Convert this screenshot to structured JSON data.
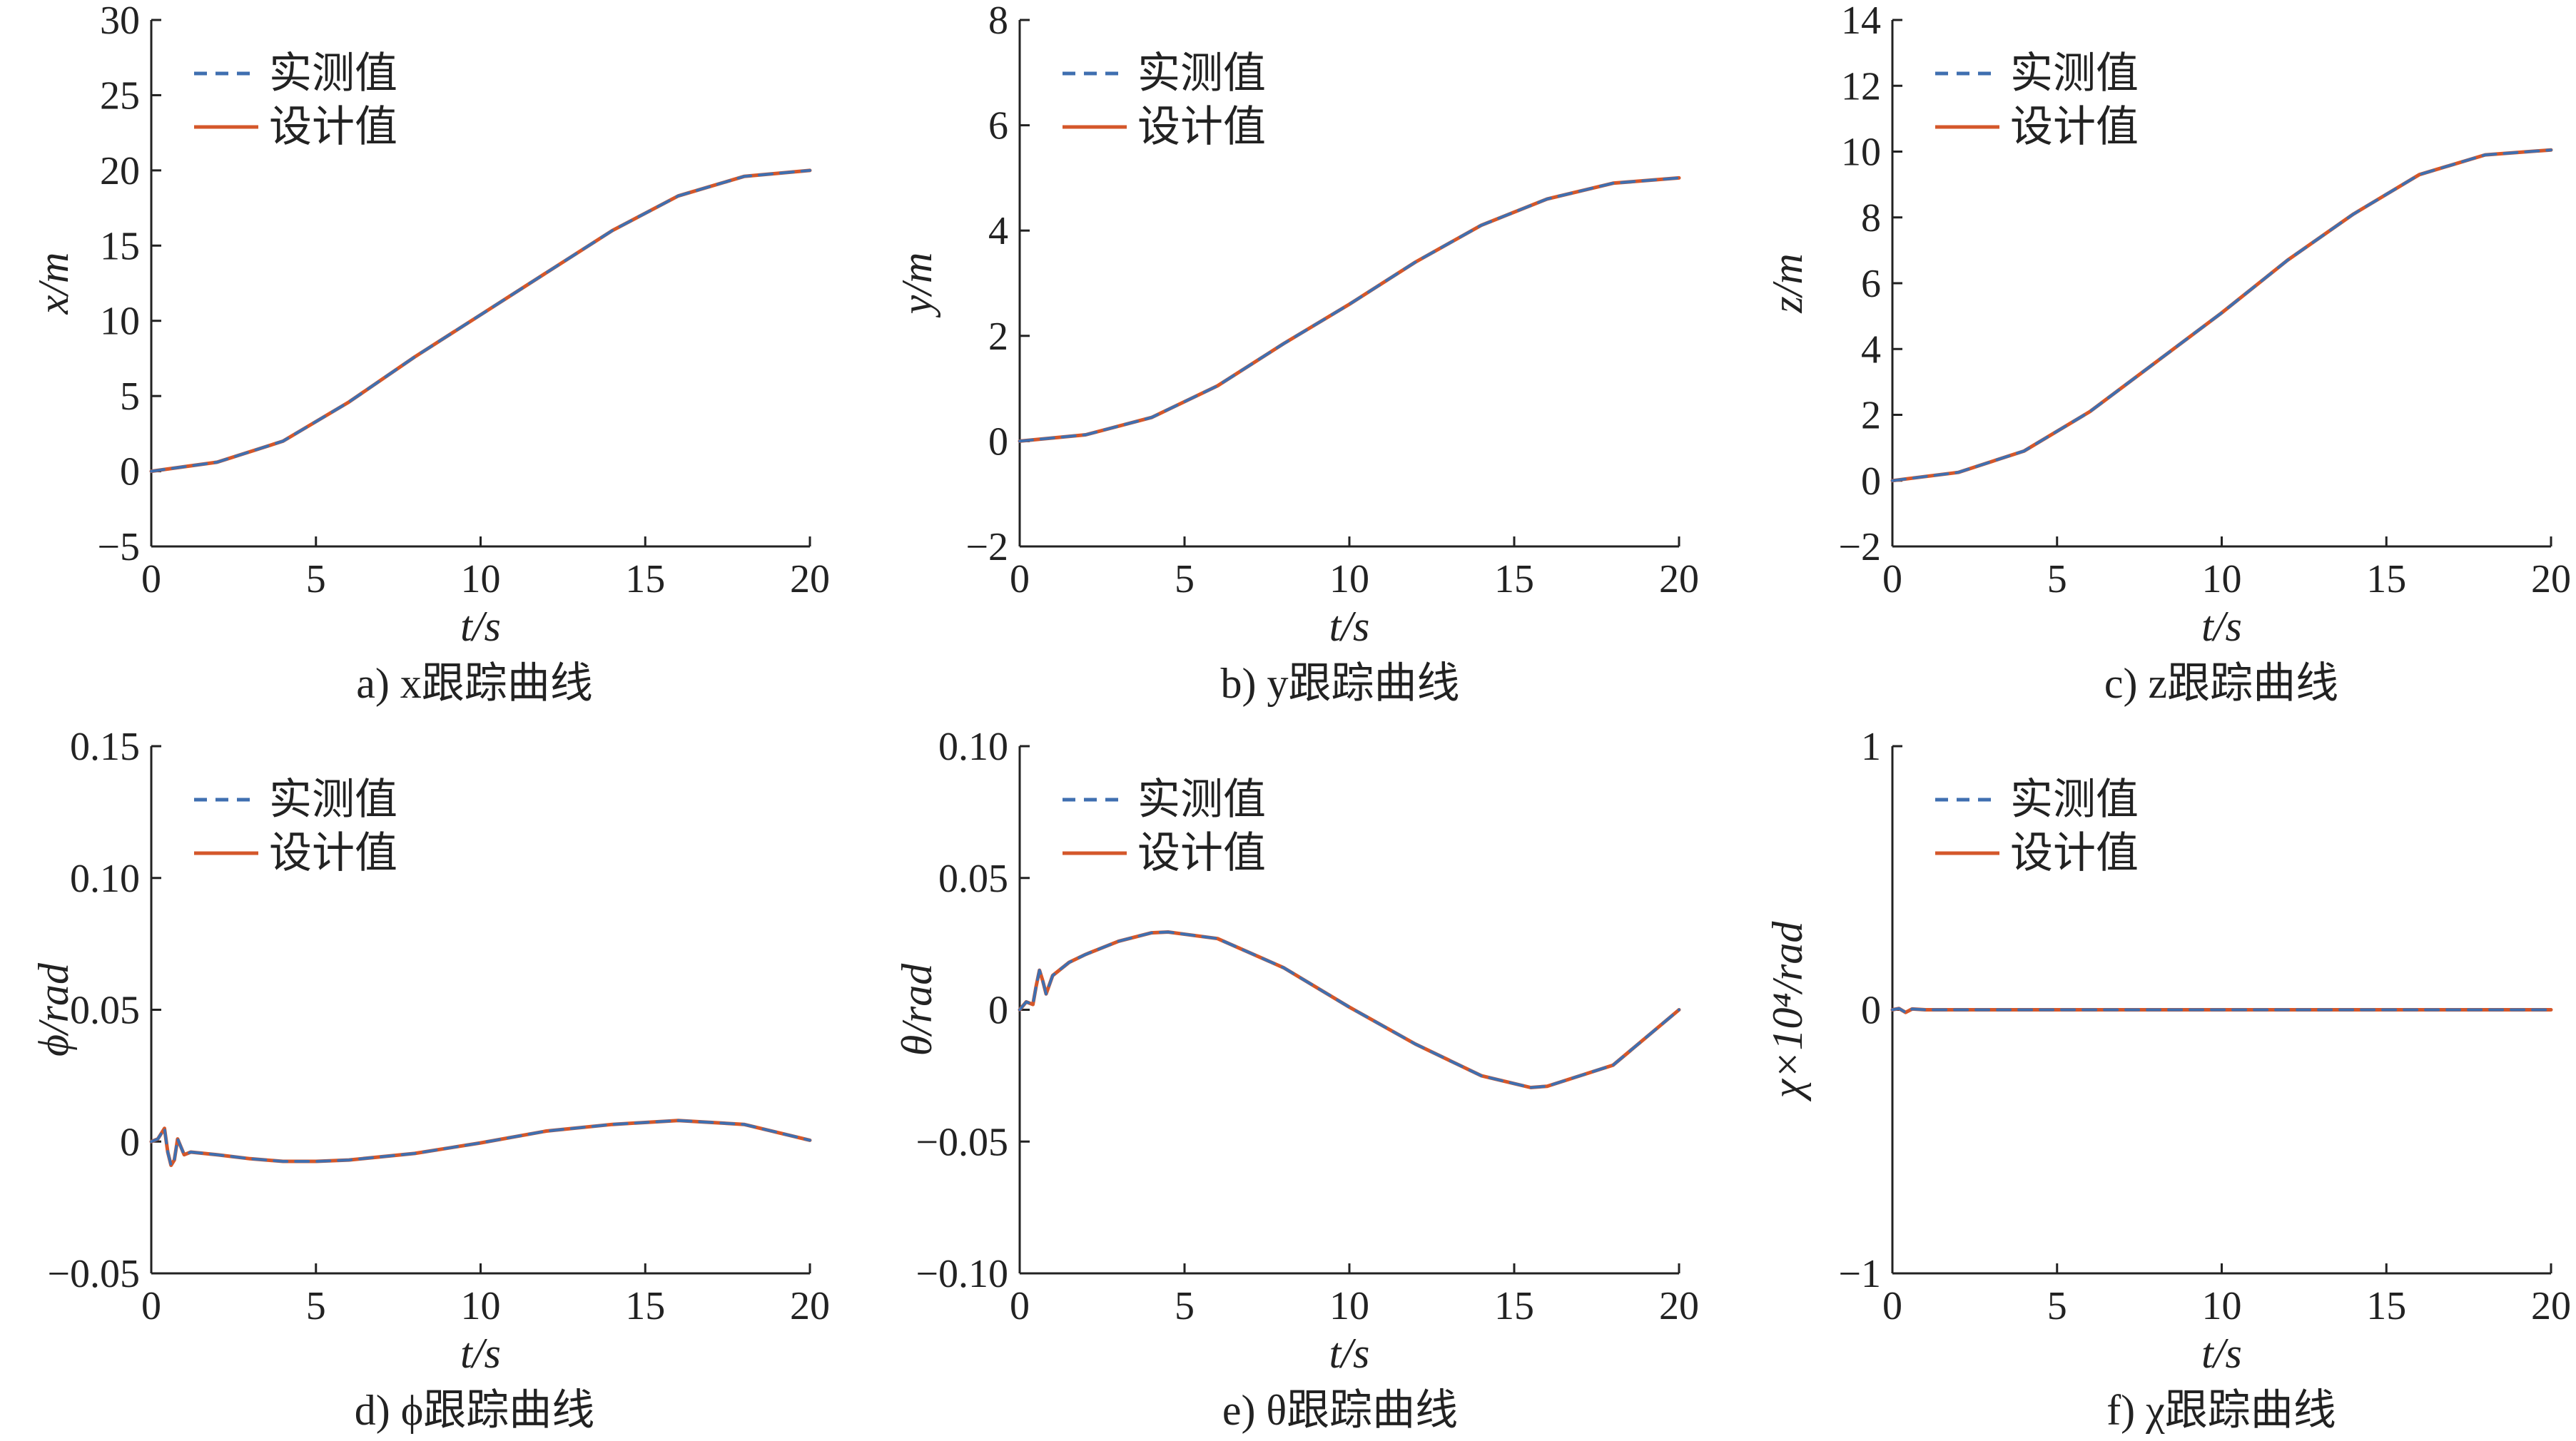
{
  "legend": {
    "measured": "实测值",
    "design": "设计值"
  },
  "colors": {
    "measured": "#3f6fb0",
    "design": "#d4572a",
    "axis": "#222222"
  },
  "chart_data": [
    {
      "type": "line",
      "caption": "a) x跟踪曲线",
      "xlabel": "t/s",
      "ylabel": "x/m",
      "xlim": [
        0,
        20
      ],
      "ylim": [
        -5,
        30
      ],
      "xticks": [
        "0",
        "5",
        "10",
        "15",
        "20"
      ],
      "yticks": [
        "−5",
        "0",
        "5",
        "10",
        "15",
        "20",
        "25",
        "30"
      ],
      "x": [
        0,
        2,
        4,
        6,
        8,
        10,
        12,
        14,
        16,
        18,
        20
      ],
      "series": [
        {
          "name": "实测值",
          "values": [
            0,
            0.6,
            2.0,
            4.6,
            7.6,
            10.4,
            13.2,
            16.0,
            18.3,
            19.6,
            20.0
          ]
        },
        {
          "name": "设计值",
          "values": [
            0,
            0.6,
            2.0,
            4.6,
            7.6,
            10.4,
            13.2,
            16.0,
            18.3,
            19.6,
            20.0
          ]
        }
      ]
    },
    {
      "type": "line",
      "caption": "b) y跟踪曲线",
      "xlabel": "t/s",
      "ylabel": "y/m",
      "xlim": [
        0,
        20
      ],
      "ylim": [
        -2,
        8
      ],
      "xticks": [
        "0",
        "5",
        "10",
        "15",
        "20"
      ],
      "yticks": [
        "−2",
        "0",
        "2",
        "4",
        "6",
        "8"
      ],
      "x": [
        0,
        2,
        4,
        6,
        8,
        10,
        12,
        14,
        16,
        18,
        20
      ],
      "series": [
        {
          "name": "实测值",
          "values": [
            0,
            0.12,
            0.45,
            1.05,
            1.85,
            2.6,
            3.4,
            4.1,
            4.6,
            4.9,
            5.0
          ]
        },
        {
          "name": "设计值",
          "values": [
            0,
            0.12,
            0.45,
            1.05,
            1.85,
            2.6,
            3.4,
            4.1,
            4.6,
            4.9,
            5.0
          ]
        }
      ]
    },
    {
      "type": "line",
      "caption": "c) z跟踪曲线",
      "xlabel": "t/s",
      "ylabel": "z/m",
      "xlim": [
        0,
        20
      ],
      "ylim": [
        -2,
        14
      ],
      "xticks": [
        "0",
        "5",
        "10",
        "15",
        "20"
      ],
      "yticks": [
        "−2",
        "0",
        "2",
        "4",
        "6",
        "8",
        "10",
        "12",
        "14"
      ],
      "x": [
        0,
        2,
        4,
        6,
        8,
        10,
        12,
        14,
        16,
        18,
        20
      ],
      "series": [
        {
          "name": "实测值",
          "values": [
            0,
            0.25,
            0.9,
            2.1,
            3.6,
            5.1,
            6.7,
            8.1,
            9.3,
            9.9,
            10.05
          ]
        },
        {
          "name": "设计值",
          "values": [
            0,
            0.25,
            0.9,
            2.1,
            3.6,
            5.1,
            6.7,
            8.1,
            9.3,
            9.9,
            10.05
          ]
        }
      ]
    },
    {
      "type": "line",
      "caption": "d) ϕ跟踪曲线",
      "xlabel": "t/s",
      "ylabel": "ϕ/rad",
      "xlim": [
        0,
        20
      ],
      "ylim": [
        -0.05,
        0.15
      ],
      "xticks": [
        "0",
        "5",
        "10",
        "15",
        "20"
      ],
      "yticks": [
        "−0.05",
        "0",
        "0.05",
        "0.10",
        "0.15"
      ],
      "x": [
        0,
        0.2,
        0.4,
        0.5,
        0.6,
        0.7,
        0.8,
        1.0,
        1.2,
        2,
        3,
        4,
        5,
        6,
        8,
        10,
        12,
        14,
        16,
        18,
        20
      ],
      "series": [
        {
          "name": "实测值",
          "values": [
            0,
            0.001,
            0.005,
            -0.004,
            -0.009,
            -0.007,
            0.001,
            -0.005,
            -0.004,
            -0.005,
            -0.0065,
            -0.0075,
            -0.0075,
            -0.007,
            -0.0045,
            -0.0005,
            0.004,
            0.0065,
            0.008,
            0.0065,
            0.0005
          ]
        },
        {
          "name": "设计值",
          "values": [
            0,
            0.001,
            0.005,
            -0.004,
            -0.009,
            -0.007,
            0.001,
            -0.005,
            -0.004,
            -0.005,
            -0.0065,
            -0.0075,
            -0.0075,
            -0.007,
            -0.0045,
            -0.0005,
            0.004,
            0.0065,
            0.008,
            0.0065,
            0.0005
          ]
        }
      ]
    },
    {
      "type": "line",
      "caption": "e) θ跟踪曲线",
      "xlabel": "t/s",
      "ylabel": "θ/rad",
      "xlim": [
        0,
        20
      ],
      "ylim": [
        -0.1,
        0.1
      ],
      "xticks": [
        "0",
        "5",
        "10",
        "15",
        "20"
      ],
      "yticks": [
        "−0.10",
        "−0.05",
        "0",
        "0.05",
        "0.10"
      ],
      "x": [
        0,
        0.2,
        0.4,
        0.5,
        0.6,
        0.7,
        0.8,
        1.0,
        1.5,
        2,
        3,
        4,
        4.5,
        6,
        8,
        10,
        12,
        14,
        15.5,
        16,
        18,
        20
      ],
      "series": [
        {
          "name": "实测值",
          "values": [
            0,
            0.003,
            0.002,
            0.009,
            0.015,
            0.011,
            0.006,
            0.013,
            0.018,
            0.021,
            0.026,
            0.0292,
            0.0295,
            0.027,
            0.016,
            0.001,
            -0.013,
            -0.025,
            -0.0295,
            -0.029,
            -0.021,
            0
          ]
        },
        {
          "name": "设计值",
          "values": [
            0,
            0.003,
            0.002,
            0.009,
            0.015,
            0.011,
            0.006,
            0.013,
            0.018,
            0.021,
            0.026,
            0.0292,
            0.0295,
            0.027,
            0.016,
            0.001,
            -0.013,
            -0.025,
            -0.0295,
            -0.029,
            -0.021,
            0
          ]
        }
      ]
    },
    {
      "type": "line",
      "caption": "f) χ跟踪曲线",
      "xlabel": "t/s",
      "ylabel": "χ×10⁴/rad",
      "xlim": [
        0,
        20
      ],
      "ylim": [
        -1,
        1
      ],
      "xticks": [
        "0",
        "5",
        "10",
        "15",
        "20"
      ],
      "yticks": [
        "−1",
        "0",
        "1"
      ],
      "x": [
        0,
        0.2,
        0.4,
        0.6,
        1,
        5,
        10,
        15,
        20
      ],
      "series": [
        {
          "name": "实测值",
          "values": [
            0,
            0.005,
            -0.01,
            0.003,
            0,
            0,
            0,
            0,
            0
          ]
        },
        {
          "name": "设计值",
          "values": [
            0,
            0.005,
            -0.01,
            0.003,
            0,
            0,
            0,
            0,
            0
          ]
        }
      ]
    }
  ]
}
